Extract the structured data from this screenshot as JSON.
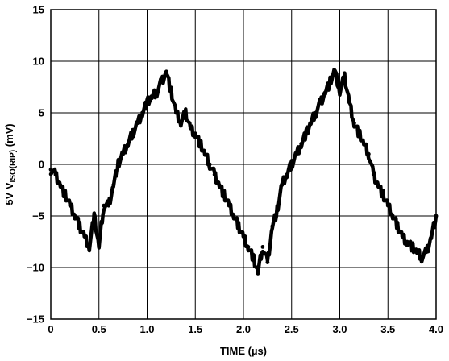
{
  "chart_data": {
    "type": "line",
    "xlabel": "TIME (µs)",
    "ylabel": "5V V",
    "ylabel_sub": "ISO(RIP)",
    "ylabel_unit": " (mV)",
    "xlim": [
      0,
      4.0
    ],
    "ylim": [
      -15,
      15
    ],
    "xticks": [
      0,
      0.5,
      1.0,
      1.5,
      2.0,
      2.5,
      3.0,
      3.5,
      4.0
    ],
    "xtick_labels": [
      "0",
      "0.5",
      "1.0",
      "1.5",
      "2.0",
      "2.5",
      "3.0",
      "3.5",
      "4.0"
    ],
    "yticks": [
      15,
      10,
      5,
      0,
      -5,
      -10,
      -15
    ],
    "ytick_labels": [
      "15",
      "10",
      "5",
      "0",
      "−5",
      "−10",
      "−15"
    ],
    "grid": true,
    "series": [
      {
        "color": "#000000",
        "x": [
          0.0,
          0.05,
          0.1,
          0.15,
          0.2,
          0.25,
          0.3,
          0.35,
          0.4,
          0.45,
          0.5,
          0.55,
          0.6,
          0.65,
          0.7,
          0.75,
          0.8,
          0.85,
          0.9,
          0.95,
          1.0,
          1.05,
          1.1,
          1.15,
          1.2,
          1.25,
          1.3,
          1.35,
          1.4,
          1.45,
          1.5,
          1.55,
          1.6,
          1.65,
          1.7,
          1.75,
          1.8,
          1.85,
          1.9,
          1.95,
          2.0,
          2.05,
          2.1,
          2.15,
          2.2,
          2.25,
          2.3,
          2.35,
          2.4,
          2.45,
          2.5,
          2.55,
          2.6,
          2.65,
          2.7,
          2.75,
          2.8,
          2.85,
          2.9,
          2.95,
          3.0,
          3.05,
          3.1,
          3.15,
          3.2,
          3.25,
          3.3,
          3.35,
          3.4,
          3.45,
          3.5,
          3.55,
          3.6,
          3.65,
          3.7,
          3.75,
          3.8,
          3.85,
          3.9,
          3.95,
          4.0
        ],
        "values": [
          -0.5,
          -1.0,
          -2.0,
          -3.0,
          -4.0,
          -5.0,
          -6.0,
          -7.0,
          -8.0,
          -5.0,
          -8.0,
          -4.0,
          -4.0,
          -2.0,
          0.0,
          1.0,
          2.0,
          3.0,
          4.0,
          5.0,
          6.0,
          6.5,
          7.0,
          8.0,
          9.0,
          7.0,
          5.0,
          4.0,
          5.0,
          3.5,
          3.0,
          2.0,
          1.0,
          0.0,
          -1.0,
          -2.0,
          -3.0,
          -4.0,
          -5.0,
          -6.0,
          -7.0,
          -8.0,
          -9.0,
          -10.5,
          -8.0,
          -9.5,
          -6.0,
          -4.5,
          -2.0,
          -1.0,
          0.0,
          1.0,
          2.0,
          3.0,
          4.0,
          5.0,
          6.0,
          7.0,
          8.0,
          9.0,
          7.0,
          8.5,
          6.0,
          4.0,
          3.0,
          2.0,
          1.0,
          -1.0,
          -2.0,
          -3.0,
          -4.0,
          -5.0,
          -6.0,
          -7.0,
          -7.5,
          -8.0,
          -8.5,
          -9.0,
          -8.5,
          -7.0,
          -5.0
        ]
      }
    ]
  }
}
